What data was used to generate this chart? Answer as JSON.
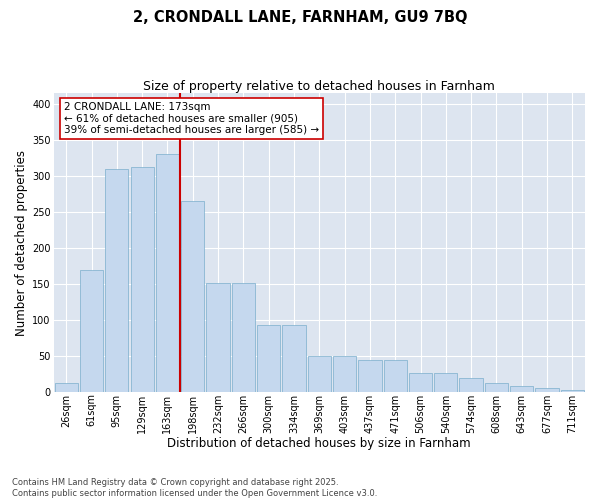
{
  "title1": "2, CRONDALL LANE, FARNHAM, GU9 7BQ",
  "title2": "Size of property relative to detached houses in Farnham",
  "xlabel": "Distribution of detached houses by size in Farnham",
  "ylabel": "Number of detached properties",
  "categories": [
    "26sqm",
    "61sqm",
    "95sqm",
    "129sqm",
    "163sqm",
    "198sqm",
    "232sqm",
    "266sqm",
    "300sqm",
    "334sqm",
    "369sqm",
    "403sqm",
    "437sqm",
    "471sqm",
    "506sqm",
    "540sqm",
    "574sqm",
    "608sqm",
    "643sqm",
    "677sqm",
    "711sqm"
  ],
  "heights": [
    12,
    170,
    310,
    312,
    330,
    265,
    152,
    151,
    93,
    93,
    50,
    50,
    45,
    45,
    27,
    27,
    20,
    12,
    9,
    6,
    3
  ],
  "bar_color": "#c5d8ee",
  "bar_edge_color": "#7aaecc",
  "bg_color": "#dde5f0",
  "grid_color": "#ffffff",
  "vline_color": "#cc0000",
  "vline_x": 4.5,
  "ylim": [
    0,
    415
  ],
  "yticks": [
    0,
    50,
    100,
    150,
    200,
    250,
    300,
    350,
    400
  ],
  "annotation_text": "2 CRONDALL LANE: 173sqm\n← 61% of detached houses are smaller (905)\n39% of semi-detached houses are larger (585) →",
  "footer_text": "Contains HM Land Registry data © Crown copyright and database right 2025.\nContains public sector information licensed under the Open Government Licence v3.0.",
  "fig_bg": "#ffffff",
  "title_fontsize": 10.5,
  "subtitle_fontsize": 9,
  "axis_label_fontsize": 8.5,
  "tick_fontsize": 7,
  "annotation_fontsize": 7.5,
  "footer_fontsize": 6
}
